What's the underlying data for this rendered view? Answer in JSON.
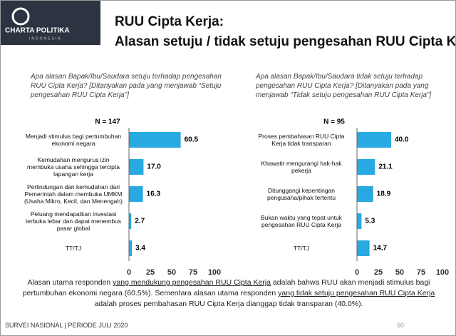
{
  "header": {
    "logo_title": "CHARTA POLITIKA",
    "logo_subtitle": "INDONESIA",
    "title": "RUU Cipta Kerja:",
    "subtitle": "Alasan setuju / tidak setuju pengesahan RUU Cipta Kerja"
  },
  "chart_data": [
    {
      "type": "bar",
      "question": "Apa alasan Bapak/Ibu/Saudara setuju terhadap pengesahan RUU Cipta Kerja? [Ditanyakan pada yang menjawab “Setuju pengesahan RUU Cipta Kerja”]",
      "n_label": "N = 147",
      "categories": [
        "Menjadi stimulus bagi pertumbuhan ekonomi negara",
        "Kemudahan mengurus izin membuka usaha sehingga tercipta lapangan kerja",
        "Perlindungan dan kemudahan dari Pemerintah dalam membuka UMKM (Usaha Mikro, Kecil, dan Menengah)",
        "Peluang mendapatkan investasi terbuka lebar dan dapat menembus pasar global",
        "TT/TJ"
      ],
      "values": [
        60.5,
        17.0,
        16.3,
        2.7,
        3.4
      ],
      "value_labels": [
        "60.5",
        "17.0",
        "16.3",
        "2.7",
        "3.4"
      ],
      "color": "#29a9e1",
      "xlim": [
        0,
        100
      ],
      "xticks": [
        0,
        25,
        50,
        75,
        100
      ]
    },
    {
      "type": "bar",
      "question": "Apa alasan Bapak/Ibu/Saudara tidak setuju terhadap pengesahan RUU Cipta Kerja? [Ditanyakan pada yang menjawab “Tidak setuju pengesahan RUU Cipta Kerja”]",
      "n_label": "N = 95",
      "categories": [
        "Proses pembahasan RUU Cipta Kerja tidak transparan",
        "Khawatir mengurangi hak-hak pekerja",
        "Ditunggangi kepentingan pengusaha/pihak tertentu",
        "Bukan waktu yang tepat untuk pengesahan RUU Cipta Kerja",
        "TT/TJ"
      ],
      "values": [
        40.0,
        21.1,
        18.9,
        5.3,
        14.7
      ],
      "value_labels": [
        "40.0",
        "21.1",
        "18.9",
        "5.3",
        "14.7"
      ],
      "color": "#29a9e1",
      "xlim": [
        0,
        100
      ],
      "xticks": [
        0,
        25,
        50,
        75,
        100
      ]
    }
  ],
  "summary": [
    "Alasan utama responden ",
    "yang mendukung pengesahan RUU Cipta Kerja",
    " adalah bahwa RUU akan menjadi stimulus bagi pertumbuhan ekonomi negara (60.5%). Sementara alasan utama responden ",
    "yang tidak setuju pengesahan RUU Cipta Kerja",
    " adalah proses pembahasan RUU Cipta Kerja dianggap tidak transparan (40.0%)."
  ],
  "footer": {
    "survey": "SURVEI NASIONAL | PERIODE JULI 2020",
    "page": "60"
  }
}
